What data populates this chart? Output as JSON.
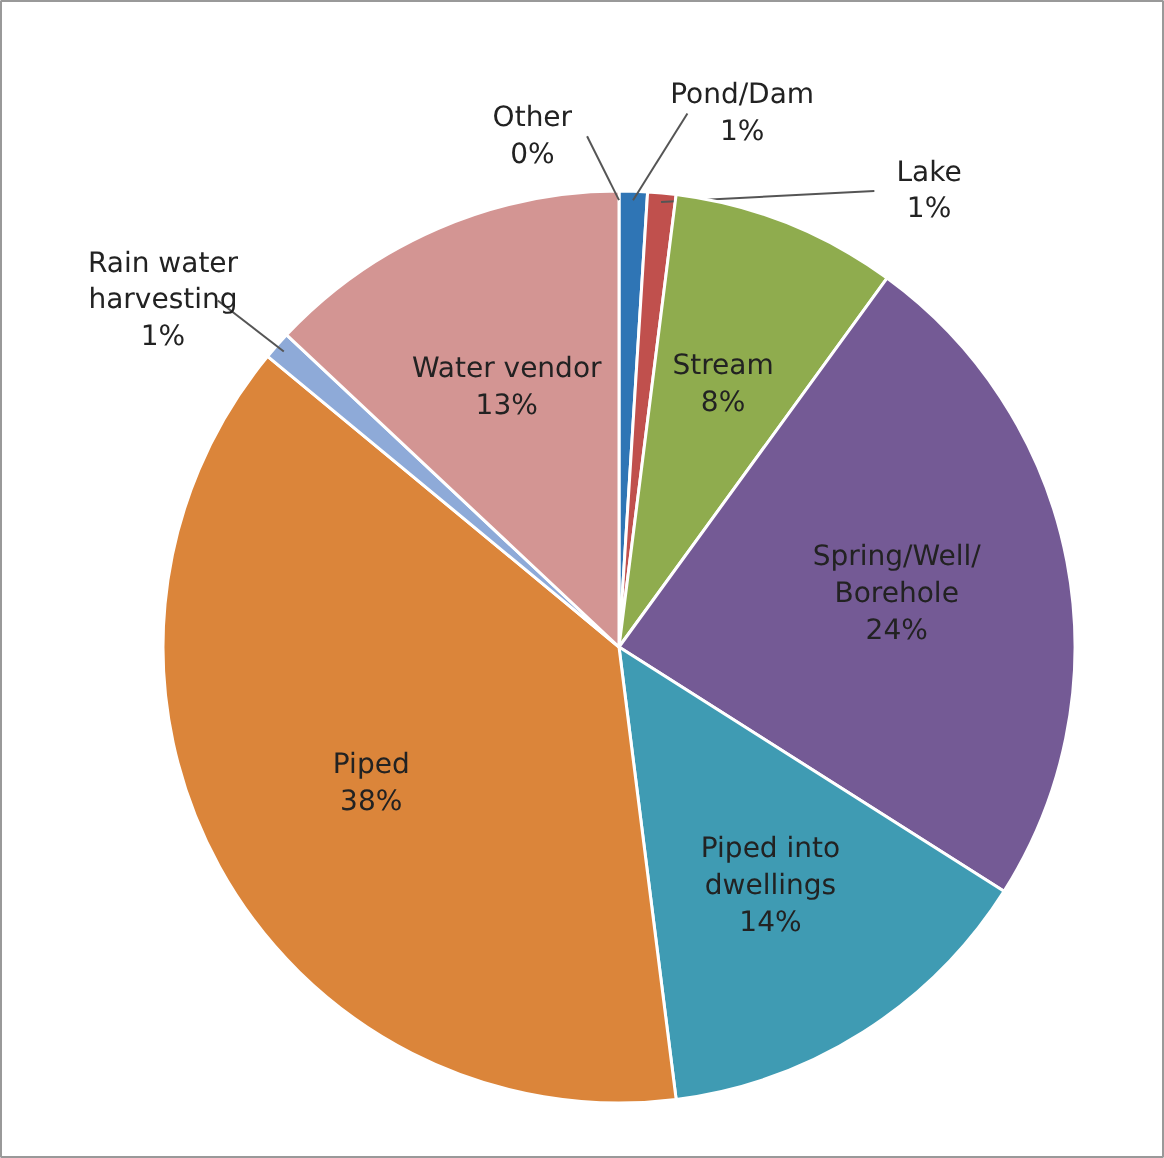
{
  "chart_data": {
    "type": "pie",
    "categories": [
      "Pond/Dam",
      "Lake",
      "Stream",
      "Spring/Well/\nBorehole",
      "Piped into\ndwellings",
      "Piped",
      "Rain water\nharvesting",
      "Water vendor",
      "Other"
    ],
    "values": [
      1,
      1,
      8,
      24,
      14,
      38,
      1,
      13,
      0
    ],
    "value_labels": [
      "1%",
      "1%",
      "8%",
      "24%",
      "14%",
      "38%",
      "1%",
      "13%",
      "0%"
    ],
    "colors": [
      "#2f75b5",
      "#c0504d",
      "#8fac4e",
      "#745a95",
      "#3f9bb3",
      "#db853a",
      "#8eaad8",
      "#d39593",
      "#c4bd97"
    ]
  }
}
